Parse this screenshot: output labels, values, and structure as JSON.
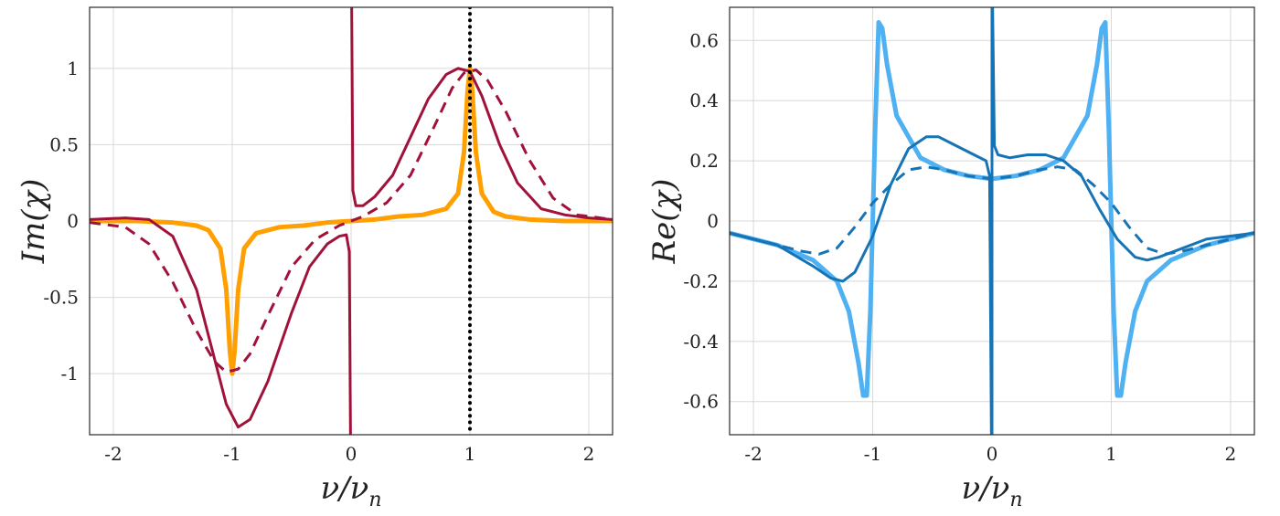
{
  "chart_data": [
    {
      "type": "line",
      "xlabel": "ν/ν",
      "xlabel_sub": "n",
      "ylabel": "Im(χ)",
      "xlim": [
        -2.2,
        2.2
      ],
      "ylim": [
        -1.4,
        1.4
      ],
      "xticks": [
        -2,
        -1,
        0,
        1,
        2
      ],
      "xtick_labels": [
        "-2",
        "-1",
        "0",
        "1",
        "2"
      ],
      "yticks": [
        -1,
        -0.5,
        0,
        0.5,
        1
      ],
      "ytick_labels": [
        "-1",
        "-0.5",
        "0",
        "0.5",
        "1"
      ],
      "grid": true,
      "vline": {
        "x": 1,
        "style": "dotted",
        "color": "#000000"
      },
      "series": [
        {
          "color": "#FFA000",
          "style": "solid",
          "width": 5,
          "x": [
            -2.2,
            -1.8,
            -1.5,
            -1.3,
            -1.2,
            -1.1,
            -1.05,
            -1.02,
            -1.0,
            -0.98,
            -0.95,
            -0.9,
            -0.8,
            -0.6,
            -0.4,
            -0.2,
            0,
            0.2,
            0.4,
            0.6,
            0.8,
            0.9,
            0.95,
            0.98,
            1.0,
            1.02,
            1.05,
            1.1,
            1.2,
            1.3,
            1.5,
            1.8,
            2.2
          ],
          "y": [
            0,
            0,
            -0.01,
            -0.03,
            -0.06,
            -0.18,
            -0.45,
            -0.85,
            -1.0,
            -0.85,
            -0.45,
            -0.18,
            -0.08,
            -0.04,
            -0.03,
            -0.01,
            0,
            0.01,
            0.03,
            0.04,
            0.08,
            0.18,
            0.45,
            0.85,
            1.0,
            0.85,
            0.45,
            0.18,
            0.06,
            0.03,
            0.01,
            0,
            0
          ]
        },
        {
          "color": "#A0123A",
          "style": "solid",
          "width": 3,
          "x": [
            -2.2,
            -1.9,
            -1.7,
            -1.5,
            -1.3,
            -1.15,
            -1.05,
            -0.95,
            -0.85,
            -0.7,
            -0.5,
            -0.35,
            -0.2,
            -0.1,
            -0.04,
            -0.015,
            -0.005
          ],
          "y": [
            0.01,
            0.02,
            0.01,
            -0.1,
            -0.45,
            -0.9,
            -1.2,
            -1.35,
            -1.3,
            -1.05,
            -0.6,
            -0.3,
            -0.15,
            -0.1,
            -0.09,
            -0.2,
            -1.4
          ]
        },
        {
          "color": "#A0123A",
          "style": "solid",
          "width": 3,
          "x": [
            0.005,
            0.015,
            0.04,
            0.1,
            0.2,
            0.35,
            0.5,
            0.65,
            0.8,
            0.9,
            1.0,
            1.1,
            1.25,
            1.4,
            1.6,
            1.8,
            2.0,
            2.2
          ],
          "y": [
            1.4,
            0.2,
            0.1,
            0.1,
            0.16,
            0.3,
            0.55,
            0.8,
            0.96,
            1.0,
            0.98,
            0.82,
            0.5,
            0.25,
            0.08,
            0.04,
            0.02,
            0.01
          ]
        },
        {
          "color": "#A0123A",
          "style": "dashed",
          "width": 3,
          "x": [
            -2.2,
            -1.9,
            -1.7,
            -1.5,
            -1.3,
            -1.15,
            -1.05,
            -0.95,
            -0.85,
            -0.7,
            -0.5,
            -0.3,
            -0.1,
            0,
            0.1,
            0.3,
            0.5,
            0.7,
            0.85,
            0.95,
            1.05,
            1.15,
            1.3,
            1.5,
            1.7,
            1.9,
            2.2
          ],
          "y": [
            -0.01,
            -0.04,
            -0.15,
            -0.4,
            -0.72,
            -0.92,
            -0.99,
            -0.97,
            -0.87,
            -0.62,
            -0.3,
            -0.12,
            -0.03,
            0,
            0.03,
            0.12,
            0.3,
            0.62,
            0.87,
            0.97,
            0.99,
            0.92,
            0.72,
            0.4,
            0.15,
            0.04,
            0.01
          ]
        }
      ]
    },
    {
      "type": "line",
      "xlabel": "ν/ν",
      "xlabel_sub": "n",
      "ylabel": "Re(χ)",
      "xlim": [
        -2.2,
        2.2
      ],
      "ylim": [
        -0.71,
        0.71
      ],
      "xticks": [
        -2,
        -1,
        0,
        1,
        2
      ],
      "xtick_labels": [
        "-2",
        "-1",
        "0",
        "1",
        "2"
      ],
      "yticks": [
        -0.6,
        -0.4,
        -0.2,
        0,
        0.2,
        0.4,
        0.6
      ],
      "ytick_labels": [
        "-0.6",
        "-0.4",
        "-0.2",
        "0",
        "0.2",
        "0.4",
        "0.6"
      ],
      "grid": true,
      "series": [
        {
          "color": "#4FB0F2",
          "style": "solid",
          "width": 5,
          "x": [
            -2.2,
            -1.8,
            -1.5,
            -1.3,
            -1.2,
            -1.12,
            -1.08,
            -1.05,
            -1.02,
            -1.0,
            -0.98,
            -0.95,
            -0.92,
            -0.88,
            -0.8,
            -0.6,
            -0.4,
            -0.2,
            0,
            0.2,
            0.4,
            0.6,
            0.8,
            0.88,
            0.92,
            0.95,
            0.98,
            1.0,
            1.02,
            1.05,
            1.08,
            1.12,
            1.2,
            1.3,
            1.5,
            1.8,
            2.2
          ],
          "y": [
            -0.04,
            -0.08,
            -0.13,
            -0.2,
            -0.3,
            -0.47,
            -0.58,
            -0.58,
            -0.3,
            0.0,
            0.3,
            0.66,
            0.64,
            0.52,
            0.35,
            0.21,
            0.17,
            0.15,
            0.14,
            0.15,
            0.17,
            0.21,
            0.35,
            0.52,
            0.64,
            0.66,
            0.3,
            0.0,
            -0.3,
            -0.58,
            -0.58,
            -0.47,
            -0.3,
            -0.2,
            -0.13,
            -0.08,
            -0.04
          ]
        },
        {
          "color": "#1673B5",
          "style": "solid",
          "width": 3,
          "x": [
            -2.2,
            -1.8,
            -1.5,
            -1.35,
            -1.25,
            -1.15,
            -1.0,
            -0.85,
            -0.7,
            -0.55,
            -0.45,
            -0.3,
            -0.15,
            -0.05,
            -0.02,
            -0.005
          ],
          "y": [
            -0.04,
            -0.08,
            -0.15,
            -0.19,
            -0.2,
            -0.17,
            -0.05,
            0.12,
            0.24,
            0.28,
            0.28,
            0.25,
            0.22,
            0.2,
            0.15,
            -0.71
          ]
        },
        {
          "color": "#1673B5",
          "style": "solid",
          "width": 3,
          "x": [
            0.005,
            0.02,
            0.05,
            0.15,
            0.3,
            0.45,
            0.6,
            0.75,
            0.9,
            1.05,
            1.2,
            1.3,
            1.4,
            1.6,
            1.8,
            2.2
          ],
          "y": [
            0.71,
            0.25,
            0.22,
            0.21,
            0.22,
            0.22,
            0.2,
            0.15,
            0.04,
            -0.06,
            -0.12,
            -0.13,
            -0.12,
            -0.09,
            -0.06,
            -0.04
          ]
        },
        {
          "color": "#1673B5",
          "style": "dashed",
          "width": 3,
          "x": [
            -2.2,
            -1.8,
            -1.6,
            -1.45,
            -1.3,
            -1.15,
            -1.0,
            -0.85,
            -0.7,
            -0.55,
            -0.4,
            -0.2,
            0,
            0.2,
            0.4,
            0.55,
            0.7,
            0.85,
            1.0,
            1.15,
            1.3,
            1.45,
            1.6,
            1.8,
            2.2
          ],
          "y": [
            -0.04,
            -0.08,
            -0.1,
            -0.11,
            -0.09,
            -0.02,
            0.06,
            0.12,
            0.17,
            0.18,
            0.17,
            0.15,
            0.14,
            0.15,
            0.17,
            0.18,
            0.17,
            0.12,
            0.06,
            -0.02,
            -0.09,
            -0.11,
            -0.1,
            -0.08,
            -0.04
          ]
        },
        {
          "color": "#1673B5",
          "style": "solid",
          "width": 3,
          "x": [
            0,
            0
          ],
          "y": [
            -0.71,
            0.71
          ]
        }
      ]
    }
  ]
}
